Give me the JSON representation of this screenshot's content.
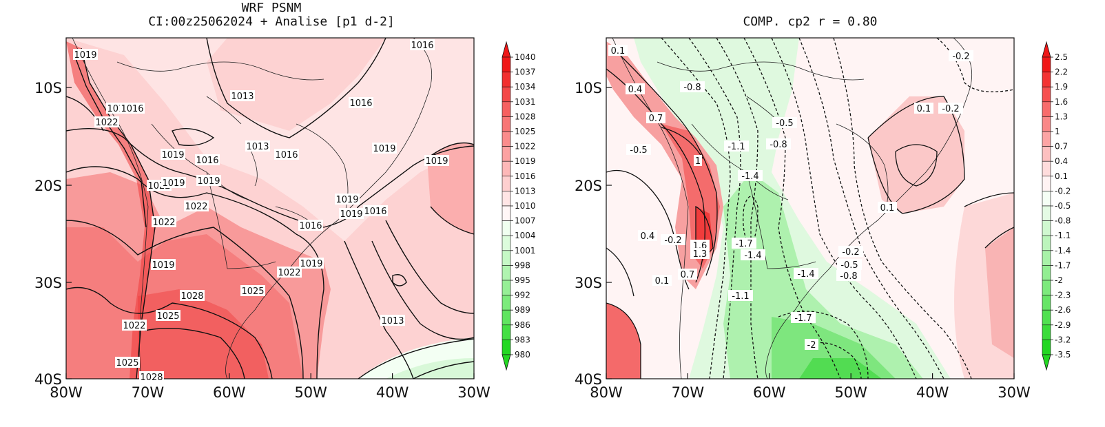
{
  "left": {
    "title_line1": "WRF PSNM",
    "title_line2": "CI:00z25062024 + Analise  [p1 d-2]",
    "x_ticks": [
      "80W",
      "70W",
      "60W",
      "50W",
      "40W",
      "30W"
    ],
    "y_ticks": [
      "10S",
      "20S",
      "30S",
      "40S"
    ],
    "colorbar": [
      "1040",
      "1037",
      "1034",
      "1031",
      "1028",
      "1025",
      "1022",
      "1019",
      "1016",
      "1013",
      "1010",
      "1007",
      "1004",
      "1001",
      "998",
      "995",
      "992",
      "989",
      "986",
      "983",
      "980"
    ],
    "colorbar_colors": [
      "#f01818",
      "#f23030",
      "#f44848",
      "#f66060",
      "#f87676",
      "#fa8c8c",
      "#fca2a2",
      "#fdb8b8",
      "#fecfcf",
      "#ffe5e5",
      "#fff6f6",
      "#f0fff0",
      "#dcfcdc",
      "#c6f8c6",
      "#b0f4b0",
      "#96ef96",
      "#7ceb7c",
      "#60e560",
      "#44df44",
      "#22d822"
    ],
    "contour_labels": [
      "1019",
      "1013",
      "1016",
      "1016",
      "1016",
      "1022",
      "1016",
      "1013",
      "1016",
      "1019",
      "1019",
      "1019",
      "1016",
      "1022",
      "1019",
      "1019",
      "1022",
      "1019",
      "1019",
      "1016",
      "1016",
      "1022",
      "1019",
      "1022",
      "1019",
      "1028",
      "1025",
      "1025",
      "1022",
      "1013",
      "1025",
      "1028"
    ]
  },
  "right": {
    "title": "COMP. cp2  r =  0.80",
    "x_ticks": [
      "80W",
      "70W",
      "60W",
      "50W",
      "40W",
      "30W"
    ],
    "y_ticks": [
      "10S",
      "20S",
      "30S",
      "40S"
    ],
    "colorbar": [
      "2.5",
      "2.2",
      "1.9",
      "1.6",
      "1.3",
      "1",
      "0.7",
      "0.4",
      "0.1",
      "-0.2",
      "-0.5",
      "-0.8",
      "-1.1",
      "-1.4",
      "-1.7",
      "-2",
      "-2.3",
      "-2.6",
      "-2.9",
      "-3.2",
      "-3.5"
    ],
    "colorbar_colors": [
      "#f01818",
      "#f33434",
      "#f65050",
      "#f86c6c",
      "#fa8888",
      "#fca4a4",
      "#fdc0c0",
      "#fedcdc",
      "#fff3f3",
      "#f5fff5",
      "#e4fbe4",
      "#d0f8d0",
      "#bcf5bc",
      "#a8f2a8",
      "#92ee92",
      "#7cea7c",
      "#66e566",
      "#50e150",
      "#3adc3a",
      "#22d722"
    ],
    "contour_labels": [
      "0.1",
      "-0.2",
      "-0.8",
      "0.4",
      "0.1",
      "-0.2",
      "0.7",
      "-0.5",
      "-0.5",
      "-0.8",
      "-1.1",
      "1",
      "-1.4",
      "0.1",
      "0.4",
      "-0.2",
      "-1.7",
      "1.6",
      "-1.4",
      "1.3",
      "-0.2",
      "-0.5",
      "0.1",
      "0.7",
      "-1.4",
      "-0.8",
      "-1.1",
      "-1.7",
      "-2"
    ]
  }
}
